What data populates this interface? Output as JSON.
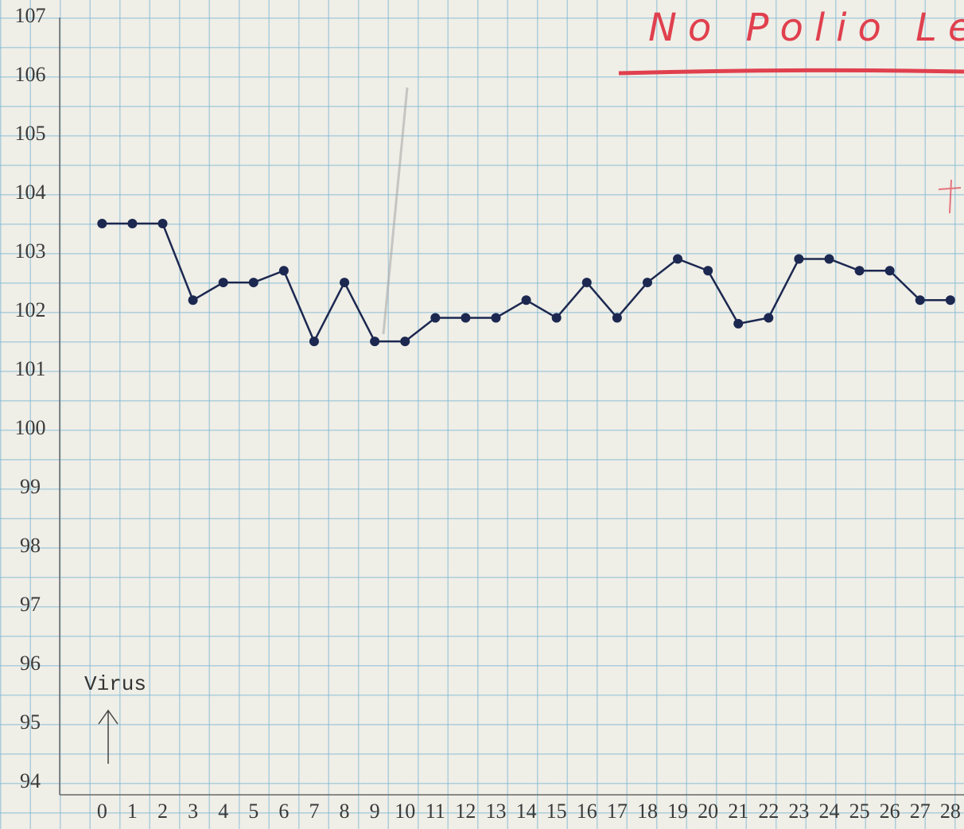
{
  "chart_data": {
    "type": "line",
    "title": "No Polio Le",
    "annotations": [
      "Virus"
    ],
    "x": [
      0,
      1,
      2,
      3,
      4,
      5,
      6,
      7,
      8,
      9,
      10,
      11,
      12,
      13,
      14,
      15,
      16,
      17,
      18,
      19,
      20,
      21,
      22,
      23,
      24,
      25,
      26,
      27,
      28
    ],
    "series": [
      {
        "color": "#1c2850",
        "values": [
          103.5,
          103.5,
          103.5,
          102.2,
          102.5,
          102.5,
          102.7,
          101.5,
          102.5,
          101.5,
          101.5,
          101.9,
          101.9,
          101.9,
          102.2,
          101.9,
          102.5,
          101.9,
          102.5,
          102.9,
          102.7,
          101.8,
          101.9,
          102.9,
          102.9,
          102.7,
          102.7,
          102.2,
          102.2
        ]
      }
    ],
    "xlim": [
      -1.4,
      28.45
    ],
    "xticks": [
      0,
      1,
      2,
      3,
      4,
      5,
      6,
      7,
      8,
      9,
      10,
      11,
      12,
      13,
      14,
      15,
      16,
      17,
      18,
      19,
      20,
      21,
      22,
      23,
      24,
      25,
      26,
      27,
      28
    ],
    "ylim": [
      93.8,
      107
    ],
    "yticks": [
      94,
      95,
      96,
      97,
      98,
      99,
      100,
      101,
      102,
      103,
      104,
      105,
      106,
      107
    ],
    "grid": false,
    "title_color": "#e0404e"
  }
}
